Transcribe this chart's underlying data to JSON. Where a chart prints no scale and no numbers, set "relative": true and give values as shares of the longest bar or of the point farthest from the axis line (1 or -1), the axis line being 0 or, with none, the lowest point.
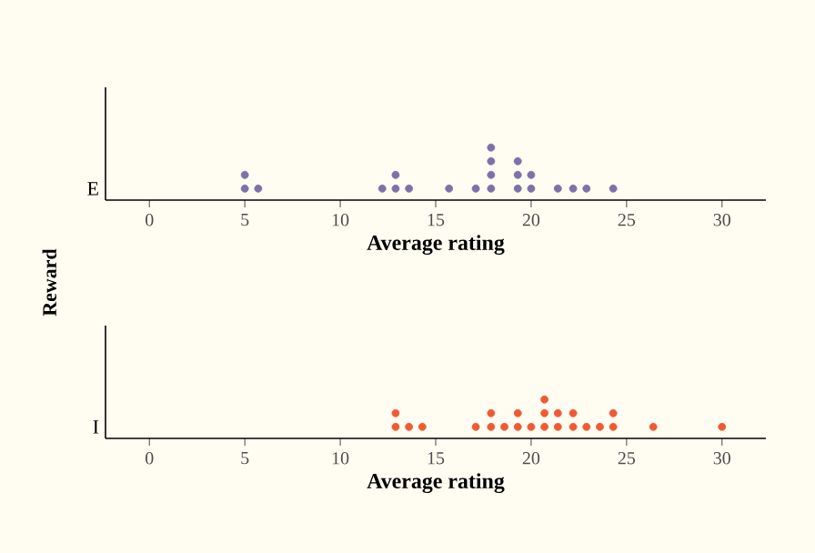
{
  "chart_data": [
    {
      "type": "scatter",
      "xlabel": "Average rating",
      "ylabel": "Reward",
      "xlim": [
        -2.3,
        32.3
      ],
      "xticks": [
        0,
        5,
        10,
        15,
        20,
        25,
        30
      ],
      "tick_labels": "x",
      "marker": "circle",
      "relative": true,
      "series": [
        {
          "name": "E",
          "color": "#7b72a8",
          "x": [
            5.0,
            5.0,
            5.7,
            12.2,
            12.9,
            12.9,
            13.6,
            15.7,
            17.1,
            17.9,
            17.9,
            17.9,
            17.9,
            19.3,
            19.3,
            19.3,
            20.0,
            20.0,
            21.4,
            22.2,
            22.9,
            24.3
          ],
          "values": [
            0.25,
            0.5,
            0.25,
            0.25,
            0.25,
            0.5,
            0.25,
            0.25,
            0.25,
            0.25,
            0.5,
            0.75,
            1,
            0.25,
            0.5,
            0.75,
            0.25,
            0.5,
            0.25,
            0.25,
            0.25,
            0.25
          ]
        }
      ]
    },
    {
      "type": "scatter",
      "xlabel": "Average rating",
      "xlim": [
        -2.3,
        32.3
      ],
      "xticks": [
        0,
        5,
        10,
        15,
        20,
        25,
        30
      ],
      "tick_labels": "x",
      "marker": "circle",
      "relative": true,
      "series": [
        {
          "name": "I",
          "color": "#f05a33",
          "x": [
            12.9,
            12.9,
            13.6,
            14.3,
            17.1,
            17.9,
            17.9,
            18.6,
            19.3,
            19.3,
            20.0,
            20.7,
            20.7,
            20.7,
            21.4,
            21.4,
            22.2,
            22.2,
            22.9,
            23.6,
            24.3,
            24.3,
            26.4,
            30.0
          ],
          "values": [
            0.333,
            0.667,
            0.333,
            0.333,
            0.333,
            0.333,
            0.667,
            0.333,
            0.333,
            0.667,
            0.333,
            0.333,
            0.667,
            1,
            0.333,
            0.667,
            0.333,
            0.667,
            0.333,
            0.333,
            0.333,
            0.667,
            0.333,
            0.333
          ]
        }
      ]
    }
  ]
}
